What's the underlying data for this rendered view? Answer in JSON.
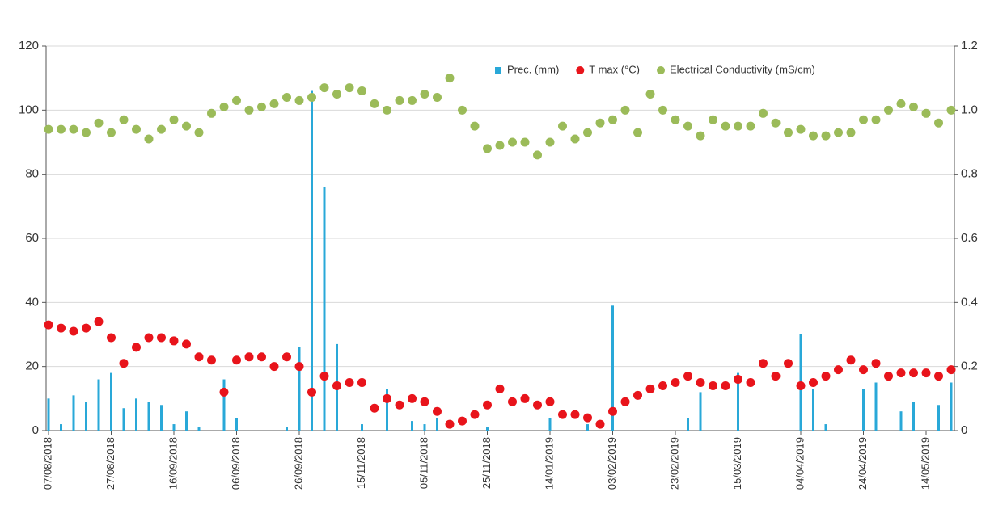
{
  "chart_data": {
    "type": "combo",
    "categories": [
      "07/08/2018",
      null,
      null,
      null,
      null,
      "27/08/2018",
      null,
      null,
      null,
      null,
      "16/09/2018",
      null,
      null,
      null,
      null,
      "06/09/2018",
      null,
      null,
      null,
      null,
      "26/09/2018",
      null,
      null,
      null,
      null,
      "15/11/2018",
      null,
      null,
      null,
      null,
      "05/11/2018",
      null,
      null,
      null,
      null,
      "25/11/2018",
      null,
      null,
      null,
      null,
      "14/01/2019",
      null,
      null,
      null,
      null,
      "03/02/2019",
      null,
      null,
      null,
      null,
      "23/02/2019",
      null,
      null,
      null,
      null,
      "15/03/2019",
      null,
      null,
      null,
      null,
      "04/04/2019",
      null,
      null,
      null,
      null,
      "24/04/2019",
      null,
      null,
      null,
      null,
      "14/05/2019",
      null,
      null
    ],
    "series": [
      {
        "name": "Prec. (mm)",
        "type": "bar",
        "color": "#29a8d8",
        "values": [
          10,
          2,
          11,
          9,
          16,
          18,
          7,
          10,
          9,
          8,
          2,
          6,
          1,
          0,
          16,
          4,
          0,
          0,
          0,
          1,
          26,
          106,
          76,
          27,
          0,
          2,
          0,
          13,
          0,
          3,
          2,
          4,
          0,
          0,
          0,
          1,
          0,
          0,
          0,
          0,
          4,
          0,
          0,
          2,
          0,
          39,
          0,
          0,
          0,
          0,
          0,
          4,
          12,
          0,
          0,
          18,
          0,
          0,
          0,
          0,
          30,
          13,
          2,
          0,
          0,
          13,
          15,
          0,
          6,
          9,
          0,
          8,
          15
        ]
      },
      {
        "name": "T max (°C)",
        "type": "scatter",
        "color": "#e8141b",
        "values": [
          33,
          32,
          31,
          32,
          34,
          29,
          21,
          26,
          29,
          29,
          28,
          27,
          23,
          22,
          12,
          22,
          23,
          23,
          20,
          23,
          20,
          12,
          17,
          14,
          15,
          15,
          7,
          10,
          8,
          10,
          9,
          6,
          2,
          3,
          5,
          8,
          13,
          9,
          10,
          8,
          9,
          5,
          5,
          4,
          2,
          6,
          9,
          11,
          13,
          14,
          15,
          17,
          15,
          14,
          14,
          16,
          15,
          21,
          17,
          21,
          14,
          15,
          17,
          19,
          22,
          19,
          21,
          17,
          18,
          18,
          18,
          17,
          19
        ]
      },
      {
        "name": "Electrical Conductivity (mS/cm)",
        "type": "scatter",
        "axis": "y2",
        "color": "#9bbb59",
        "values": [
          0.94,
          0.94,
          0.94,
          0.93,
          0.96,
          0.93,
          0.97,
          0.94,
          0.91,
          0.94,
          0.97,
          0.95,
          0.93,
          0.99,
          1.01,
          1.03,
          1.0,
          1.01,
          1.02,
          1.04,
          1.03,
          1.04,
          1.07,
          1.05,
          1.07,
          1.06,
          1.02,
          1.0,
          1.03,
          1.03,
          1.05,
          1.04,
          1.1,
          1.0,
          0.95,
          0.88,
          0.89,
          0.9,
          0.9,
          0.86,
          0.9,
          0.95,
          0.91,
          0.93,
          0.96,
          0.97,
          1.0,
          0.93,
          1.05,
          1.0,
          0.97,
          0.95,
          0.92,
          0.97,
          0.95,
          0.95,
          0.95,
          0.99,
          0.96,
          0.93,
          0.94,
          0.92,
          0.92,
          0.93,
          0.93,
          0.97,
          0.97,
          1.0,
          1.02,
          1.01,
          0.99,
          0.96,
          1.0
        ]
      }
    ],
    "ylim": [
      0,
      120
    ],
    "yticks": [
      0,
      20,
      40,
      60,
      80,
      100,
      120
    ],
    "y2lim": [
      0,
      1.2
    ],
    "y2ticks": [
      0,
      0.2,
      0.4,
      0.6,
      0.8,
      {
        "value": 1,
        "label": "1.0"
      },
      1.2
    ],
    "grid": true,
    "legend": "top-right"
  }
}
